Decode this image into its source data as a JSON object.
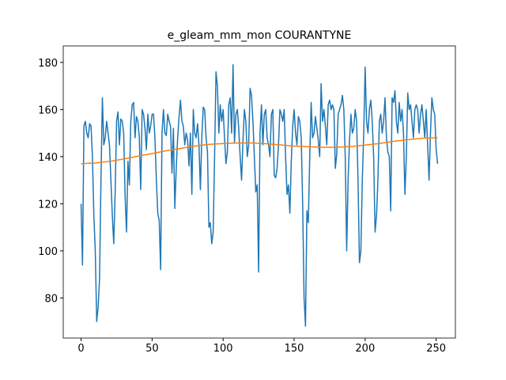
{
  "chart_data": {
    "type": "line",
    "title": "e_gleam_mm_mon COURANTYNE",
    "x": [
      0,
      1,
      2,
      3,
      4,
      5,
      6,
      7,
      8,
      9,
      10,
      11,
      12,
      13,
      14,
      15,
      16,
      17,
      18,
      19,
      20,
      21,
      22,
      23,
      24,
      25,
      26,
      27,
      28,
      29,
      30,
      31,
      32,
      33,
      34,
      35,
      36,
      37,
      38,
      39,
      40,
      41,
      42,
      43,
      44,
      45,
      46,
      47,
      48,
      49,
      50,
      51,
      52,
      53,
      54,
      55,
      56,
      57,
      58,
      59,
      60,
      61,
      62,
      63,
      64,
      65,
      66,
      67,
      68,
      69,
      70,
      71,
      72,
      73,
      74,
      75,
      76,
      77,
      78,
      79,
      80,
      81,
      82,
      83,
      84,
      85,
      86,
      87,
      88,
      89,
      90,
      91,
      92,
      93,
      94,
      95,
      96,
      97,
      98,
      99,
      100,
      101,
      102,
      103,
      104,
      105,
      106,
      107,
      108,
      109,
      110,
      111,
      112,
      113,
      114,
      115,
      116,
      117,
      118,
      119,
      120,
      121,
      122,
      123,
      124,
      125,
      126,
      127,
      128,
      129,
      130,
      131,
      132,
      133,
      134,
      135,
      136,
      137,
      138,
      139,
      140,
      141,
      142,
      143,
      144,
      145,
      146,
      147,
      148,
      149,
      150,
      151,
      152,
      153,
      154,
      155,
      156,
      157,
      158,
      159,
      160,
      161,
      162,
      163,
      164,
      165,
      166,
      167,
      168,
      169,
      170,
      171,
      172,
      173,
      174,
      175,
      176,
      177,
      178,
      179,
      180,
      181,
      182,
      183,
      184,
      185,
      186,
      187,
      188,
      189,
      190,
      191,
      192,
      193,
      194,
      195,
      196,
      197,
      198,
      199,
      200,
      201,
      202,
      203,
      204,
      205,
      206,
      207,
      208,
      209,
      210,
      211,
      212,
      213,
      214,
      215,
      216,
      217,
      218,
      219,
      220,
      221,
      222,
      223,
      224,
      225,
      226,
      227,
      228,
      229,
      230,
      231,
      232,
      233,
      234,
      235,
      236,
      237,
      238,
      239,
      240,
      241,
      242,
      243,
      244,
      245,
      246,
      247,
      248,
      249,
      250,
      251
    ],
    "series": [
      {
        "color": "#1f77b4",
        "values": [
          120,
          94,
          153,
          155,
          150,
          148,
          154,
          153,
          140,
          115,
          100,
          70,
          76,
          88,
          130,
          165,
          145,
          148,
          155,
          150,
          145,
          130,
          115,
          103,
          125,
          155,
          159,
          145,
          156,
          155,
          150,
          123,
          108,
          138,
          128,
          155,
          162,
          163,
          148,
          157,
          155,
          148,
          126,
          160,
          158,
          152,
          143,
          158,
          150,
          153,
          158,
          158,
          148,
          130,
          116,
          113,
          92,
          150,
          160,
          150,
          149,
          158,
          155,
          153,
          133,
          152,
          118,
          135,
          148,
          157,
          164,
          155,
          153,
          145,
          150,
          147,
          136,
          150,
          124,
          160,
          150,
          148,
          154,
          145,
          126,
          148,
          161,
          160,
          148,
          142,
          110,
          112,
          103,
          108,
          140,
          176,
          170,
          150,
          162,
          155,
          160,
          148,
          137,
          142,
          162,
          165,
          150,
          179,
          146,
          158,
          160,
          152,
          140,
          130,
          147,
          160,
          155,
          140,
          145,
          169,
          166,
          155,
          140,
          125,
          128,
          91,
          150,
          162,
          145,
          158,
          160,
          148,
          145,
          140,
          158,
          160,
          132,
          131,
          135,
          145,
          160,
          158,
          155,
          160,
          140,
          124,
          128,
          116,
          138,
          153,
          160,
          150,
          145,
          157,
          155,
          148,
          120,
          80,
          68,
          117,
          112,
          140,
          163,
          148,
          150,
          157,
          152,
          147,
          140,
          171,
          155,
          160,
          153,
          145,
          162,
          164,
          160,
          162,
          160,
          135,
          141,
          158,
          160,
          162,
          166,
          160,
          140,
          100,
          130,
          147,
          158,
          150,
          152,
          160,
          155,
          130,
          95,
          100,
          130,
          150,
          178,
          155,
          150,
          160,
          164,
          155,
          140,
          108,
          115,
          130,
          155,
          158,
          150,
          155,
          165,
          148,
          142,
          140,
          117,
          165,
          163,
          168,
          155,
          150,
          163,
          155,
          160,
          150,
          124,
          140,
          167,
          160,
          162,
          155,
          148,
          160,
          162,
          160,
          150,
          158,
          162,
          155,
          148,
          160,
          145,
          130,
          150,
          165,
          160,
          158,
          143,
          137
        ]
      },
      {
        "color": "#ff7f0e",
        "x": [
          0,
          10,
          20,
          30,
          40,
          50,
          60,
          70,
          80,
          90,
          100,
          110,
          120,
          130,
          140,
          150,
          160,
          170,
          180,
          190,
          200,
          210,
          220,
          230,
          240,
          250,
          251
        ],
        "values": [
          137,
          137.3,
          138,
          139,
          140.2,
          141.3,
          142.5,
          143.5,
          144.5,
          145.2,
          145.6,
          145.8,
          145.8,
          145.5,
          145,
          144.5,
          144.2,
          144,
          144,
          144.3,
          144.9,
          145.6,
          146.5,
          147.2,
          147.8,
          148,
          148
        ]
      }
    ],
    "xlim": [
      -12.55,
      263.55
    ],
    "ylim": [
      63,
      187
    ],
    "xticks": [
      0,
      50,
      100,
      150,
      200,
      250
    ],
    "yticks": [
      80,
      100,
      120,
      140,
      160,
      180
    ]
  }
}
